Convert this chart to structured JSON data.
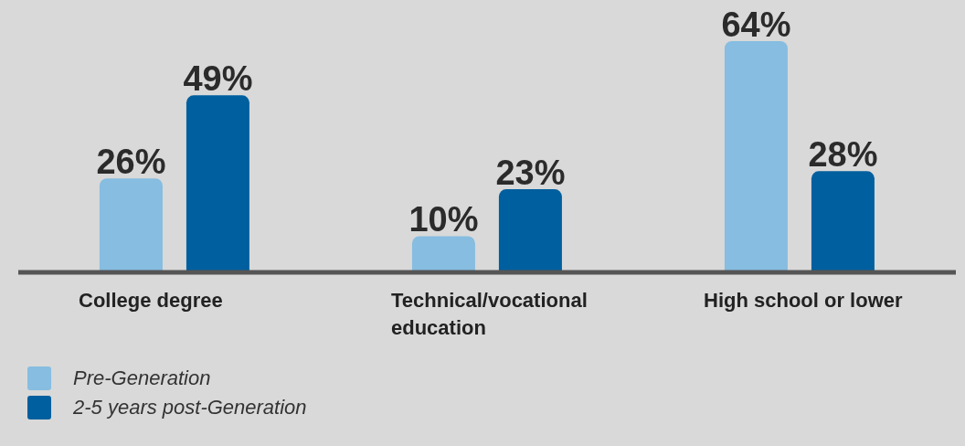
{
  "chart_data": {
    "type": "bar",
    "categories": [
      "College degree",
      "Technical/vocational education",
      "High school or lower"
    ],
    "series": [
      {
        "name": "Pre-Generation",
        "color": "#86bde0",
        "values": [
          26,
          10,
          64
        ],
        "value_labels": [
          "26%",
          "10%",
          "64%"
        ]
      },
      {
        "name": "2-5 years post-Generation",
        "color": "#005f9e",
        "values": [
          49,
          23,
          28
        ],
        "value_labels": [
          "49%",
          "23%",
          "28%"
        ]
      }
    ],
    "legend": "bottom left"
  }
}
